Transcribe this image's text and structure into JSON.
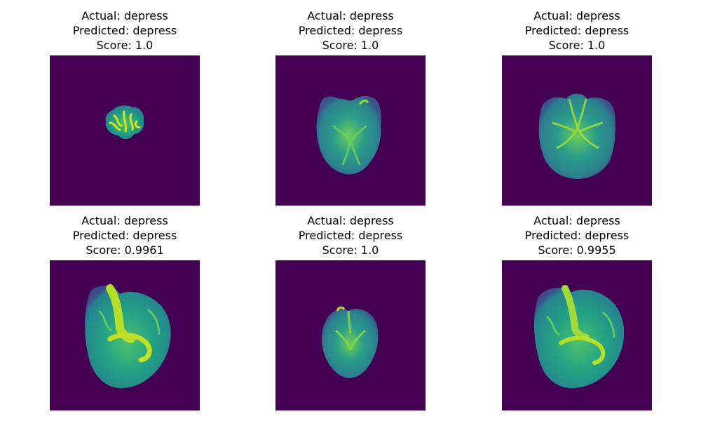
{
  "colors": {
    "background": "#440154",
    "tissue_dark": "#3b528b",
    "tissue_mid": "#21918c",
    "tissue_light": "#5ec962",
    "tissue_bright": "#b5de2b"
  },
  "panels": [
    {
      "actual": "Actual: depress",
      "predicted": "Predicted: depress",
      "score": "Score: 1.0"
    },
    {
      "actual": "Actual: depress",
      "predicted": "Predicted: depress",
      "score": "Score: 1.0"
    },
    {
      "actual": "Actual: depress",
      "predicted": "Predicted: depress",
      "score": "Score: 1.0"
    },
    {
      "actual": "Actual: depress",
      "predicted": "Predicted: depress",
      "score": "Score: 0.9961"
    },
    {
      "actual": "Actual: depress",
      "predicted": "Predicted: depress",
      "score": "Score: 1.0"
    },
    {
      "actual": "Actual: depress",
      "predicted": "Predicted: depress",
      "score": "Score: 0.9955"
    }
  ]
}
